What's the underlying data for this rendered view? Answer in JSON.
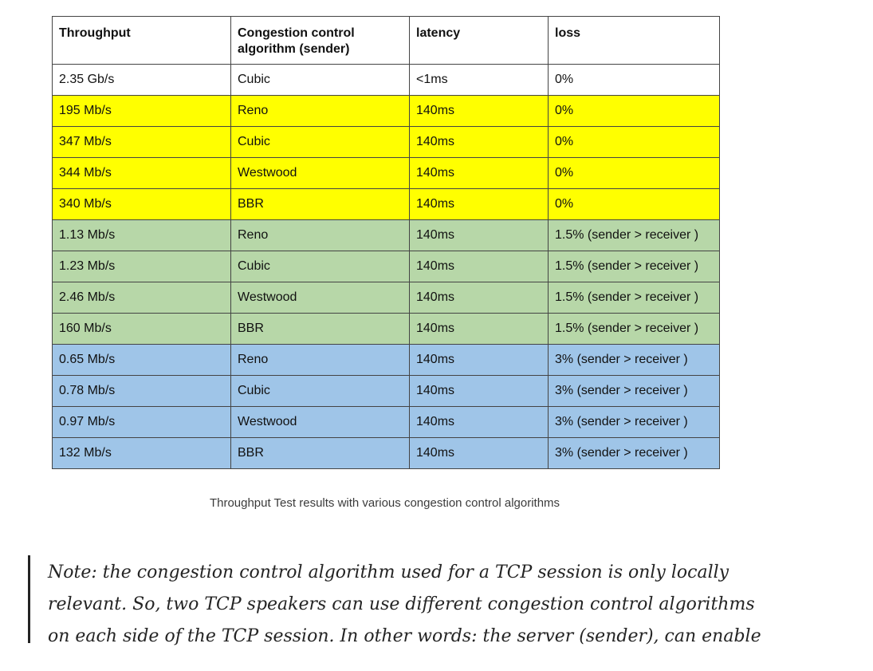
{
  "table": {
    "headers": [
      "Throughput",
      "Congestion control algorithm (sender)",
      "latency",
      "loss"
    ],
    "colors": {
      "white": "#ffffff",
      "yellow": "#ffff00",
      "green": "#b7d7a8",
      "blue": "#9fc5e8"
    },
    "rows": [
      {
        "throughput": "2.35 Gb/s",
        "algorithm": "Cubic",
        "latency": "<1ms",
        "loss": "0%",
        "color": "white"
      },
      {
        "throughput": "195 Mb/s",
        "algorithm": "Reno",
        "latency": "140ms",
        "loss": "0%",
        "color": "yellow"
      },
      {
        "throughput": "347 Mb/s",
        "algorithm": "Cubic",
        "latency": "140ms",
        "loss": "0%",
        "color": "yellow"
      },
      {
        "throughput": "344 Mb/s",
        "algorithm": "Westwood",
        "latency": "140ms",
        "loss": "0%",
        "color": "yellow"
      },
      {
        "throughput": "340 Mb/s",
        "algorithm": "BBR",
        "latency": "140ms",
        "loss": "0%",
        "color": "yellow"
      },
      {
        "throughput": "1.13 Mb/s",
        "algorithm": "Reno",
        "latency": "140ms",
        "loss": "1.5% (sender > receiver )",
        "color": "green"
      },
      {
        "throughput": "1.23 Mb/s",
        "algorithm": "Cubic",
        "latency": "140ms",
        "loss": "1.5% (sender > receiver )",
        "color": "green"
      },
      {
        "throughput": "2.46 Mb/s",
        "algorithm": "Westwood",
        "latency": "140ms",
        "loss": "1.5% (sender > receiver )",
        "color": "green"
      },
      {
        "throughput": "160 Mb/s",
        "algorithm": "BBR",
        "latency": "140ms",
        "loss": "1.5% (sender > receiver )",
        "color": "green"
      },
      {
        "throughput": "0.65 Mb/s",
        "algorithm": "Reno",
        "latency": "140ms",
        "loss": "3% (sender > receiver )",
        "color": "blue"
      },
      {
        "throughput": "0.78 Mb/s",
        "algorithm": "Cubic",
        "latency": "140ms",
        "loss": "3% (sender > receiver )",
        "color": "blue"
      },
      {
        "throughput": "0.97 Mb/s",
        "algorithm": "Westwood",
        "latency": "140ms",
        "loss": "3% (sender > receiver )",
        "color": "blue"
      },
      {
        "throughput": "132 Mb/s",
        "algorithm": "BBR",
        "latency": "140ms",
        "loss": "3% (sender > receiver )",
        "color": "blue"
      }
    ]
  },
  "caption": "Throughput Test results with various congestion control algorithms",
  "quote": {
    "lines": [
      "Note: the congestion control algorithm used for a TCP session is only locally",
      "relevant. So, two TCP speakers can use different congestion control algorithms",
      "on each side of the TCP session. In other words: the server (sender), can enable"
    ]
  }
}
